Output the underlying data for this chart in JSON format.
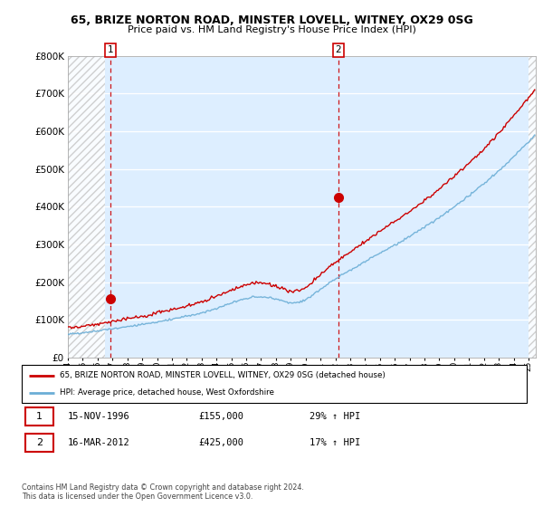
{
  "title": "65, BRIZE NORTON ROAD, MINSTER LOVELL, WITNEY, OX29 0SG",
  "subtitle": "Price paid vs. HM Land Registry's House Price Index (HPI)",
  "legend_line1": "65, BRIZE NORTON ROAD, MINSTER LOVELL, WITNEY, OX29 0SG (detached house)",
  "legend_line2": "HPI: Average price, detached house, West Oxfordshire",
  "annotation1_date": "15-NOV-1996",
  "annotation1_price": "£155,000",
  "annotation1_hpi": "29% ↑ HPI",
  "annotation2_date": "16-MAR-2012",
  "annotation2_price": "£425,000",
  "annotation2_hpi": "17% ↑ HPI",
  "footer": "Contains HM Land Registry data © Crown copyright and database right 2024.\nThis data is licensed under the Open Government Licence v3.0.",
  "ylim": [
    0,
    800000
  ],
  "yticks": [
    0,
    100000,
    200000,
    300000,
    400000,
    500000,
    600000,
    700000,
    800000
  ],
  "ytick_labels": [
    "£0",
    "£100K",
    "£200K",
    "£300K",
    "£400K",
    "£500K",
    "£600K",
    "£700K",
    "£800K"
  ],
  "xmin": 1994,
  "xmax": 2025.5,
  "sale1_year": 1996.88,
  "sale1_price": 155000,
  "sale2_year": 2012.21,
  "sale2_price": 425000,
  "hpi_color": "#6baed6",
  "price_color": "#cc0000",
  "background_color": "#ffffff",
  "plot_bg_color": "#ddeeff",
  "hatch_color": "#c8c8c8"
}
